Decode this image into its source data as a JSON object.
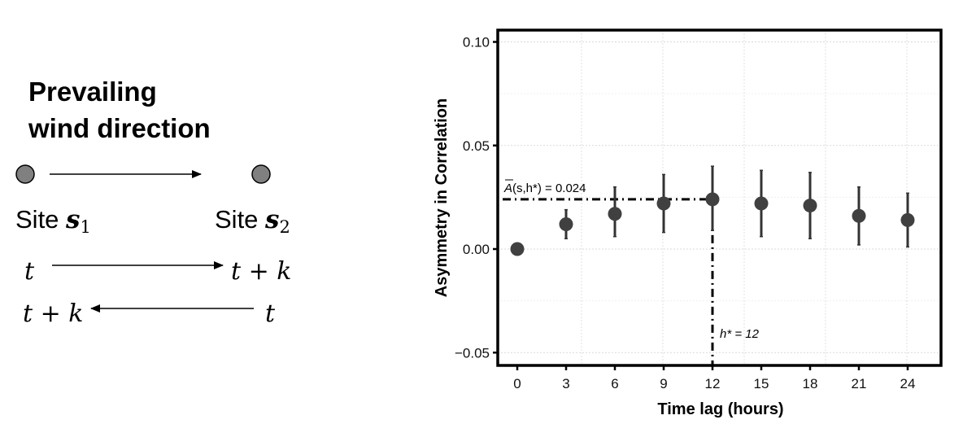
{
  "diagram": {
    "title_line1": "Prevailing",
    "title_line2": "wind direction",
    "site1_label": "Site ",
    "site1_symbol": "s",
    "site1_sub": "1",
    "site2_label": "Site ",
    "site2_symbol": "s",
    "site2_sub": "2",
    "row1_left": "t",
    "row1_right": "t + k",
    "row2_left": "t + k",
    "row2_right": "t",
    "site_color": "#808080"
  },
  "chart": {
    "ylabel": "Asymmetry in Correlation",
    "xlabel": "Time lag (hours)",
    "annotation_mean": "(s,h*) = 0.024",
    "annotation_mean_prefix": "A",
    "annotation_hstar": "h* = 12",
    "ytick_labels": [
      "0.10",
      "0.05",
      "0.00",
      "−0.05"
    ],
    "xtick_labels": [
      "0",
      "3",
      "6",
      "9",
      "12",
      "15",
      "18",
      "21",
      "24"
    ],
    "point_color": "#404040"
  },
  "chart_data": {
    "type": "scatter",
    "title": "",
    "xlabel": "Time lag (hours)",
    "ylabel": "Asymmetry in Correlation",
    "x": [
      0,
      3,
      6,
      9,
      12,
      15,
      18,
      21,
      24
    ],
    "series": [
      {
        "name": "Asymmetry",
        "values": [
          0.0,
          0.012,
          0.017,
          0.022,
          0.024,
          0.022,
          0.021,
          0.016,
          0.014
        ],
        "error_upper": [
          null,
          0.019,
          0.03,
          0.036,
          0.04,
          0.038,
          0.037,
          0.03,
          0.027
        ],
        "error_lower": [
          null,
          0.005,
          0.006,
          0.008,
          0.009,
          0.006,
          0.005,
          0.002,
          0.001
        ]
      }
    ],
    "annotations": [
      {
        "type": "hline",
        "y": 0.024,
        "label": "A̅(s,h*) = 0.024",
        "style": "dot-dash"
      },
      {
        "type": "vline",
        "x": 12,
        "label": "h* = 12",
        "style": "dot-dash"
      }
    ],
    "xticks": [
      0,
      3,
      6,
      9,
      12,
      15,
      18,
      21,
      24
    ],
    "yticks": [
      -0.05,
      0.0,
      0.05,
      0.1
    ],
    "xlim": [
      -1.2,
      26
    ],
    "ylim": [
      -0.056,
      0.106
    ],
    "grid": true,
    "legend": null
  }
}
